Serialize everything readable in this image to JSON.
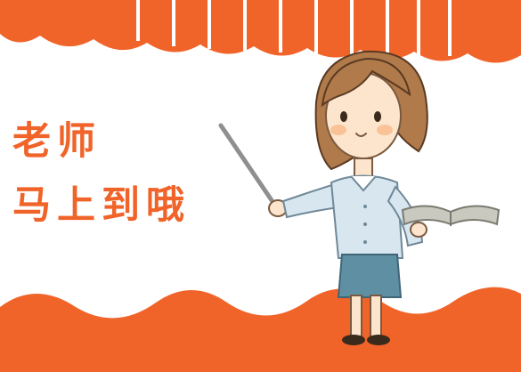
{
  "message": {
    "line1": "老师",
    "line2": "马上到哦"
  },
  "colors": {
    "accent": "#f0642a",
    "accent_dark": "#e2501c",
    "background": "#ffffff",
    "hair": "#b07a4a",
    "shirt": "#d8e6ef",
    "skirt": "#5e8fa2",
    "skin": "#fde5cd",
    "pointer": "#8f8f8f"
  },
  "icons": {
    "teacher": "teacher-illustration-icon",
    "book": "open-book-icon",
    "pointer": "pointer-stick-icon"
  }
}
